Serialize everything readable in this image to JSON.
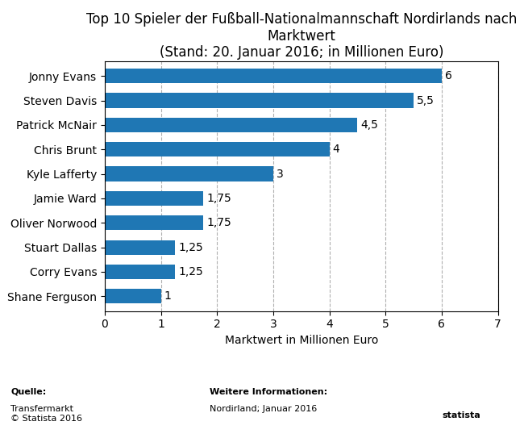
{
  "chart_data": {
    "type": "bar",
    "orientation": "horizontal",
    "title": "Top 10 Spieler der Fußball-Nationalmannschaft Nordirlands nach Marktwert\n(Stand: 20. Januar 2016; in Millionen Euro)",
    "categories": [
      "Shane Ferguson",
      "Corry Evans",
      "Stuart Dallas",
      "Oliver Norwood",
      "Jamie Ward",
      "Kyle Lafferty",
      "Chris Brunt",
      "Patrick McNair",
      "Steven Davis",
      "Jonny Evans"
    ],
    "values": [
      1,
      1.25,
      1.25,
      1.75,
      1.75,
      3,
      4,
      4.5,
      5.5,
      6
    ],
    "value_labels": [
      "1",
      "1,25",
      "1,25",
      "1,75",
      "1,75",
      "3",
      "4",
      "4,5",
      "5,5",
      "6"
    ],
    "data_labels": true,
    "xlabel": "Marktwert in Millionen Euro",
    "xlim": [
      0,
      7
    ],
    "xticks": [
      0,
      1,
      2,
      3,
      4,
      5,
      6,
      7
    ],
    "grid": true,
    "annotations": [
      "Quelle:",
      "Transfermarkt\n© Statista 2016",
      "Weitere Informationen:",
      "Nordirland; Januar 2016",
      "statista"
    ]
  }
}
